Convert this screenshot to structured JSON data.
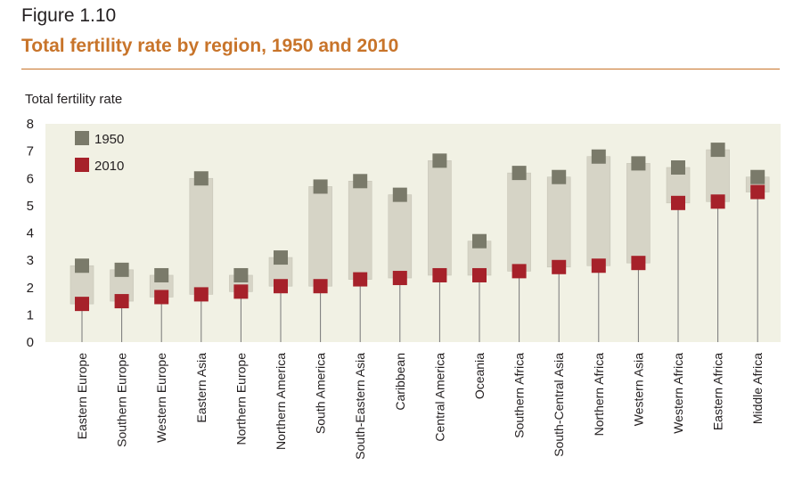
{
  "figure_label": "Figure 1.10",
  "chart_data": {
    "type": "range-dot",
    "title": "Total fertility rate by region, 1950 and 2010",
    "ylabel": "Total fertility rate",
    "ylim": [
      0,
      8
    ],
    "yticks": [
      "0",
      "1",
      "2",
      "3",
      "4",
      "5",
      "6",
      "7",
      "8"
    ],
    "categories": [
      "Eastern Europe",
      "Southern Europe",
      "Western Europe",
      "Eastern Asia",
      "Northern Europe",
      "Northern America",
      "South America",
      "South-Eastern Asia",
      "Caribbean",
      "Central America",
      "Oceania",
      "Southern Africa",
      "South-Central Asia",
      "Northern Africa",
      "Western Asia",
      "Western Africa",
      "Eastern Africa",
      "Middle Africa"
    ],
    "series": [
      {
        "name": "1950",
        "color": "#7a7a6a",
        "values": [
          2.8,
          2.65,
          2.45,
          6.0,
          2.45,
          3.1,
          5.7,
          5.9,
          5.4,
          6.65,
          3.7,
          6.2,
          6.05,
          6.8,
          6.55,
          6.4,
          7.05,
          6.05
        ]
      },
      {
        "name": "2010",
        "color": "#a6212a",
        "values": [
          1.4,
          1.5,
          1.65,
          1.75,
          1.85,
          2.05,
          2.05,
          2.3,
          2.35,
          2.45,
          2.45,
          2.6,
          2.75,
          2.8,
          2.9,
          5.1,
          5.15,
          5.5
        ]
      }
    ],
    "legend_position": "top-left",
    "background": "#f1f1e4",
    "grid": false
  }
}
